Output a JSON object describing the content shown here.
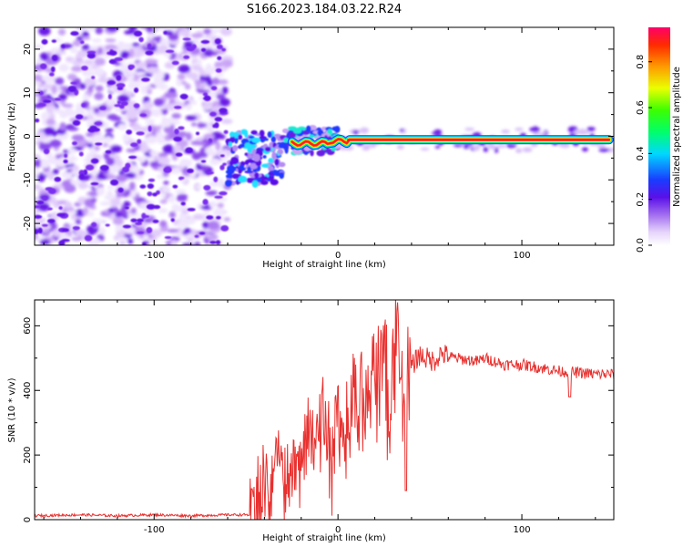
{
  "figure": {
    "title": "S166.2023.184.03.22.R24"
  },
  "chart_data": [
    {
      "type": "heatmap",
      "title": "S166.2023.184.03.22.R24",
      "xlabel": "Height of straight line (km)",
      "ylabel": "Frequency (Hz)",
      "xlim": [
        -165,
        150
      ],
      "ylim": [
        -25,
        25
      ],
      "xticks": [
        -100,
        0,
        100
      ],
      "yticks": [
        -20,
        -10,
        0,
        10,
        20
      ],
      "colorbar": {
        "label": "Normalized spectral amplitude",
        "range": [
          0.0,
          0.95
        ],
        "ticks": [
          0.0,
          0.2,
          0.4,
          0.6,
          0.8
        ],
        "colormap": [
          "#ffffff",
          "#d6b8f5",
          "#8a2be2",
          "#2020ff",
          "#00e5ff",
          "#00ff00",
          "#ffff00",
          "#ff8000",
          "#ff0060"
        ]
      },
      "regions": [
        {
          "name": "noise",
          "x_range": [
            -165,
            -60
          ],
          "y_range": [
            -25,
            25
          ],
          "amplitude": 0.15
        },
        {
          "name": "onset",
          "x_range": [
            -60,
            -30
          ],
          "frequency_hz": -5,
          "amplitude": 0.35
        },
        {
          "name": "transition",
          "x_range": [
            -30,
            0
          ],
          "frequency_hz": -1,
          "amplitude": 0.45
        },
        {
          "name": "signal",
          "x_range": [
            0,
            148
          ],
          "frequency_hz": -0.8,
          "amplitude": 0.95
        }
      ]
    },
    {
      "type": "line",
      "xlabel": "Height of straight line (km)",
      "ylabel": "SNR (10 * v/v)",
      "xlim": [
        -165,
        150
      ],
      "ylim": [
        0,
        680
      ],
      "xticks": [
        -100,
        0,
        100
      ],
      "yticks": [
        0,
        200,
        400,
        600
      ],
      "color": "#e8312f",
      "series": [
        {
          "x": [
            -165,
            -140,
            -120,
            -100,
            -80,
            -60,
            -48,
            -44,
            -40,
            -36,
            -32,
            -28,
            -24,
            -20,
            -16,
            -12,
            -8,
            -4,
            0,
            4,
            8,
            12,
            16,
            20,
            24,
            26,
            28,
            30,
            32,
            34,
            36,
            40,
            44,
            48,
            52,
            56,
            60,
            64,
            70,
            76,
            80,
            90,
            100,
            110,
            120,
            130,
            140,
            150
          ],
          "y": [
            12,
            15,
            12,
            15,
            12,
            15,
            15,
            80,
            160,
            110,
            200,
            140,
            250,
            170,
            300,
            260,
            340,
            250,
            360,
            290,
            380,
            420,
            400,
            460,
            480,
            560,
            240,
            520,
            600,
            520,
            480,
            470,
            510,
            500,
            490,
            515,
            505,
            500,
            495,
            490,
            500,
            480,
            480,
            470,
            460,
            455,
            450,
            450
          ]
        }
      ],
      "annotations": [
        {
          "x": 37,
          "y": 90,
          "label": "dip"
        },
        {
          "x": 126,
          "y": 380,
          "label": "dip"
        }
      ]
    }
  ]
}
